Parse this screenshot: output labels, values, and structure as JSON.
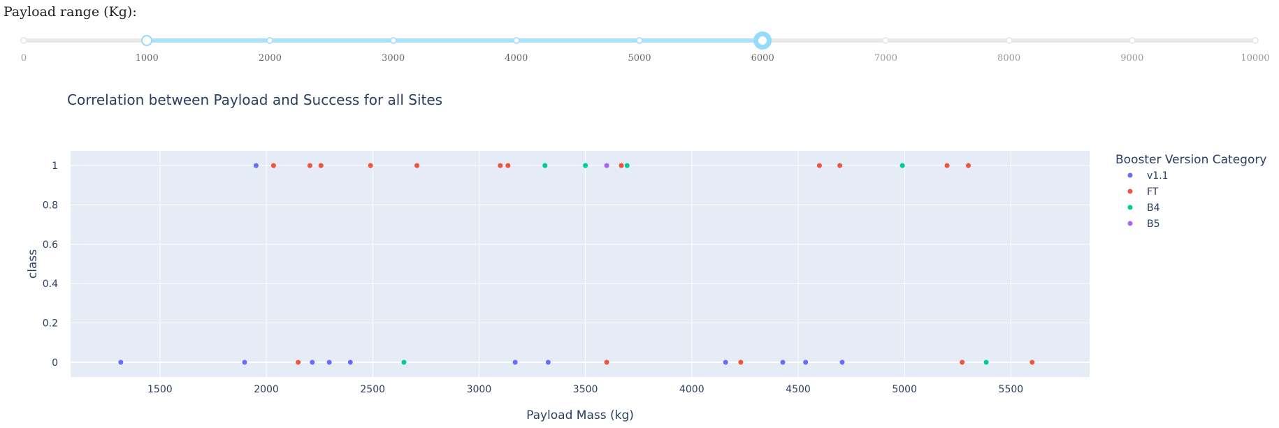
{
  "slider": {
    "label": "Payload range (Kg):",
    "min": 0,
    "max": 10000,
    "value_low": 1000,
    "value_high": 6000,
    "marks": [
      "0",
      "1000",
      "2000",
      "3000",
      "4000",
      "5000",
      "6000",
      "7000",
      "8000",
      "9000",
      "10000"
    ]
  },
  "chart_data": {
    "type": "scatter",
    "title": "Correlation between Payload and Success for all Sites",
    "xlabel": "Payload Mass (kg)",
    "ylabel": "class",
    "xlim": [
      1080,
      5870
    ],
    "ylim": [
      -0.075,
      1.075
    ],
    "x_ticks": [
      1500,
      2000,
      2500,
      3000,
      3500,
      4000,
      4500,
      5000,
      5500
    ],
    "y_ticks": [
      0,
      0.2,
      0.4,
      0.6,
      0.8,
      1
    ],
    "y_tick_labels": [
      "0",
      "0.2",
      "0.4",
      "0.6",
      "0.8",
      "1"
    ],
    "grid": true,
    "legend_title": "Booster Version Category",
    "legend_position": "right",
    "series": [
      {
        "name": "v1.1",
        "color": "#636efa",
        "points": [
          [
            1952,
            1
          ],
          [
            1316,
            0
          ],
          [
            1898,
            0
          ],
          [
            2216,
            0
          ],
          [
            2296,
            0
          ],
          [
            2395,
            0
          ],
          [
            3170,
            0
          ],
          [
            3325,
            0
          ],
          [
            4159,
            0
          ],
          [
            4428,
            0
          ],
          [
            4535,
            0
          ],
          [
            4707,
            0
          ]
        ]
      },
      {
        "name": "FT",
        "color": "#ef553b",
        "points": [
          [
            2034,
            1
          ],
          [
            2205,
            1
          ],
          [
            2257,
            1
          ],
          [
            2490,
            1
          ],
          [
            2708,
            1
          ],
          [
            3100,
            1
          ],
          [
            3136,
            1
          ],
          [
            3669,
            1
          ],
          [
            4600,
            1
          ],
          [
            4696,
            1
          ],
          [
            5200,
            1
          ],
          [
            5300,
            1
          ],
          [
            2150,
            0
          ],
          [
            3600,
            0
          ],
          [
            4230,
            0
          ],
          [
            5271,
            0
          ],
          [
            5600,
            0
          ]
        ]
      },
      {
        "name": "B4",
        "color": "#00cc96",
        "points": [
          [
            3310,
            1
          ],
          [
            3500,
            1
          ],
          [
            3696,
            1
          ],
          [
            4990,
            1
          ],
          [
            2647,
            0
          ],
          [
            5384,
            0
          ]
        ]
      },
      {
        "name": "B5",
        "color": "#ab63fa",
        "points": [
          [
            3600,
            1
          ]
        ]
      }
    ]
  }
}
